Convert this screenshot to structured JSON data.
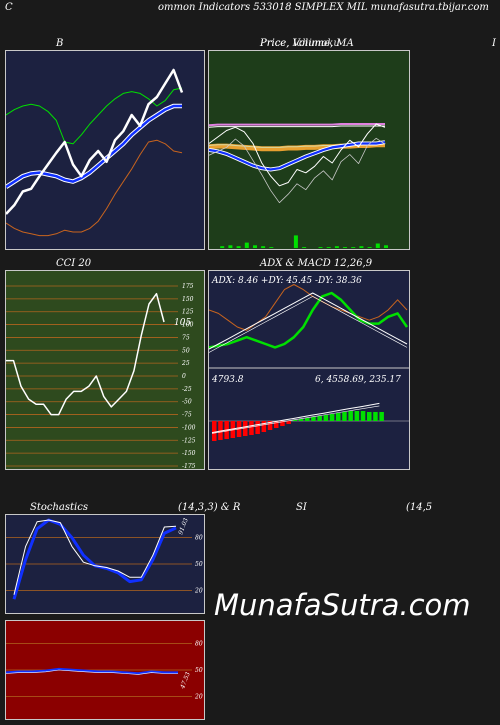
{
  "page_title": "ommon Indicators 533018 SIMPLEX MIL munafasutra.tbijar.com",
  "left_letter": "C",
  "watermark": "MunafaSutra.com",
  "panels": {
    "bb": {
      "title": "B"
    },
    "price": {
      "title": "Price, Volume, MA",
      "title_overlap": "Price, Ichimoku"
    },
    "right_letter": "I",
    "cci": {
      "title": "CCI 20",
      "value_label": "105",
      "ticks": [
        "175",
        "150",
        "125",
        "100",
        "75",
        "50",
        "25",
        "0",
        "-25",
        "-50",
        "-75",
        "-100",
        "-125",
        "-150",
        "-175"
      ]
    },
    "adx": {
      "title": "ADX  & MACD 12,26,9",
      "info": "ADX: 8.46  +DY: 45.45 -DY: 38.36",
      "macd_left": "4793.8",
      "macd_right": "6,  4558.69,  235.17"
    },
    "stoch": {
      "title_left": "Stochastics",
      "title_mid": "(14,3,3) & R",
      "title_si": "SI",
      "title_right": "(14,5",
      "value_label": "91.03",
      "ticks": [
        "80",
        "50",
        "20"
      ]
    },
    "rsi": {
      "value_label": "47.53",
      "ticks": [
        "80",
        "50",
        "20"
      ]
    }
  },
  "colors": {
    "navy": "#1c2140",
    "green_bg": "#1e3d1a",
    "olive_bg": "#2e4a1e",
    "red_bg": "#8b0000",
    "orange": "#c8641e",
    "bright_green": "#00e000",
    "blue": "#1030ff",
    "white": "#ffffff",
    "grid_orange": "#b0641e"
  },
  "chart_data": [
    {
      "type": "line",
      "title": "B",
      "series": [
        {
          "values": [
            30,
            40,
            55,
            58,
            72,
            85,
            98,
            110,
            85,
            72,
            90,
            100,
            88,
            112,
            122,
            140,
            128,
            152,
            160,
            175,
            190,
            165
          ]
        },
        {
          "values": [
            60,
            66,
            72,
            75,
            76,
            74,
            72,
            68,
            66,
            70,
            76,
            84,
            92,
            100,
            108,
            118,
            126,
            134,
            140,
            146,
            150,
            150
          ]
        },
        {
          "values": [
            140,
            146,
            150,
            152,
            150,
            144,
            134,
            110,
            108,
            118,
            130,
            140,
            150,
            158,
            164,
            166,
            164,
            158,
            150,
            156,
            168,
            170
          ]
        },
        {
          "values": [
            20,
            14,
            10,
            8,
            6,
            6,
            8,
            12,
            10,
            10,
            14,
            22,
            36,
            52,
            66,
            80,
            96,
            110,
            112,
            108,
            100,
            98
          ]
        }
      ]
    },
    {
      "type": "line",
      "title": "Price, Volume, MA",
      "series": [
        {
          "values": [
            150,
            160,
            170,
            175,
            168,
            150,
            120,
            100,
            85,
            90,
            110,
            105,
            115,
            130,
            120,
            140,
            155,
            145,
            165,
            180,
            175
          ]
        },
        {
          "values": [
            140,
            138,
            134,
            128,
            122,
            116,
            112,
            110,
            112,
            118,
            124,
            130,
            135,
            140,
            144,
            146,
            148,
            150,
            150,
            150,
            152
          ]
        },
        {
          "values": [
            145,
            146,
            146,
            145,
            144,
            143,
            142,
            142,
            142,
            143,
            143,
            144,
            144,
            145,
            145,
            146,
            146,
            147,
            147,
            148,
            148
          ]
        },
        {
          "values": [
            178,
            179,
            179,
            179,
            179,
            179,
            179,
            179,
            179,
            179,
            179,
            179,
            179,
            179,
            179,
            180,
            180,
            180,
            180,
            180,
            180
          ]
        }
      ],
      "volume": [
        0,
        2,
        3,
        2,
        6,
        3,
        2,
        1,
        0,
        0,
        14,
        1,
        0,
        1,
        1,
        2,
        1,
        1,
        2,
        1,
        5,
        3
      ]
    },
    {
      "type": "line",
      "title": "CCI 20",
      "ylim": [
        -175,
        175
      ],
      "series": [
        {
          "values": [
            30,
            30,
            -20,
            -45,
            -55,
            -55,
            -75,
            -75,
            -45,
            -30,
            -30,
            -20,
            0,
            -40,
            -60,
            -45,
            -30,
            10,
            80,
            140,
            160,
            105
          ]
        }
      ]
    },
    {
      "type": "line",
      "title": "ADX  & MACD 12,26,9",
      "series": [
        {
          "values": [
            8,
            9,
            10,
            12,
            14,
            12,
            10,
            8,
            10,
            14,
            20,
            30,
            38,
            40,
            36,
            30,
            24,
            22,
            22,
            26,
            28,
            20
          ]
        },
        {
          "values": [
            30,
            28,
            24,
            20,
            18,
            22,
            26,
            34,
            42,
            45,
            42,
            38,
            35,
            32,
            30,
            28,
            26,
            24,
            26,
            30,
            36,
            30
          ]
        }
      ]
    },
    {
      "type": "bar",
      "title": "MACD",
      "values": [
        -20,
        -19,
        -18,
        -17,
        -16,
        -15,
        -14,
        -13,
        -11,
        -9,
        -7,
        -5,
        -3,
        1,
        2,
        3,
        4,
        5,
        6,
        7,
        8,
        9,
        10,
        10,
        10,
        9,
        9,
        9
      ]
    },
    {
      "type": "line",
      "title": "Stochastics (14,3,3)",
      "ylim": [
        0,
        100
      ],
      "series": [
        {
          "values": [
            15,
            70,
            98,
            100,
            97,
            70,
            52,
            48,
            46,
            42,
            35,
            35,
            60,
            92,
            93
          ]
        },
        {
          "values": [
            10,
            55,
            90,
            100,
            95,
            80,
            60,
            48,
            45,
            40,
            30,
            32,
            55,
            85,
            91
          ]
        }
      ]
    },
    {
      "type": "line",
      "title": "RSI",
      "ylim": [
        0,
        100
      ],
      "series": [
        {
          "values": [
            47,
            48,
            48,
            49,
            51,
            50,
            49,
            48,
            48,
            47,
            46,
            48,
            47,
            47
          ]
        }
      ]
    }
  ]
}
